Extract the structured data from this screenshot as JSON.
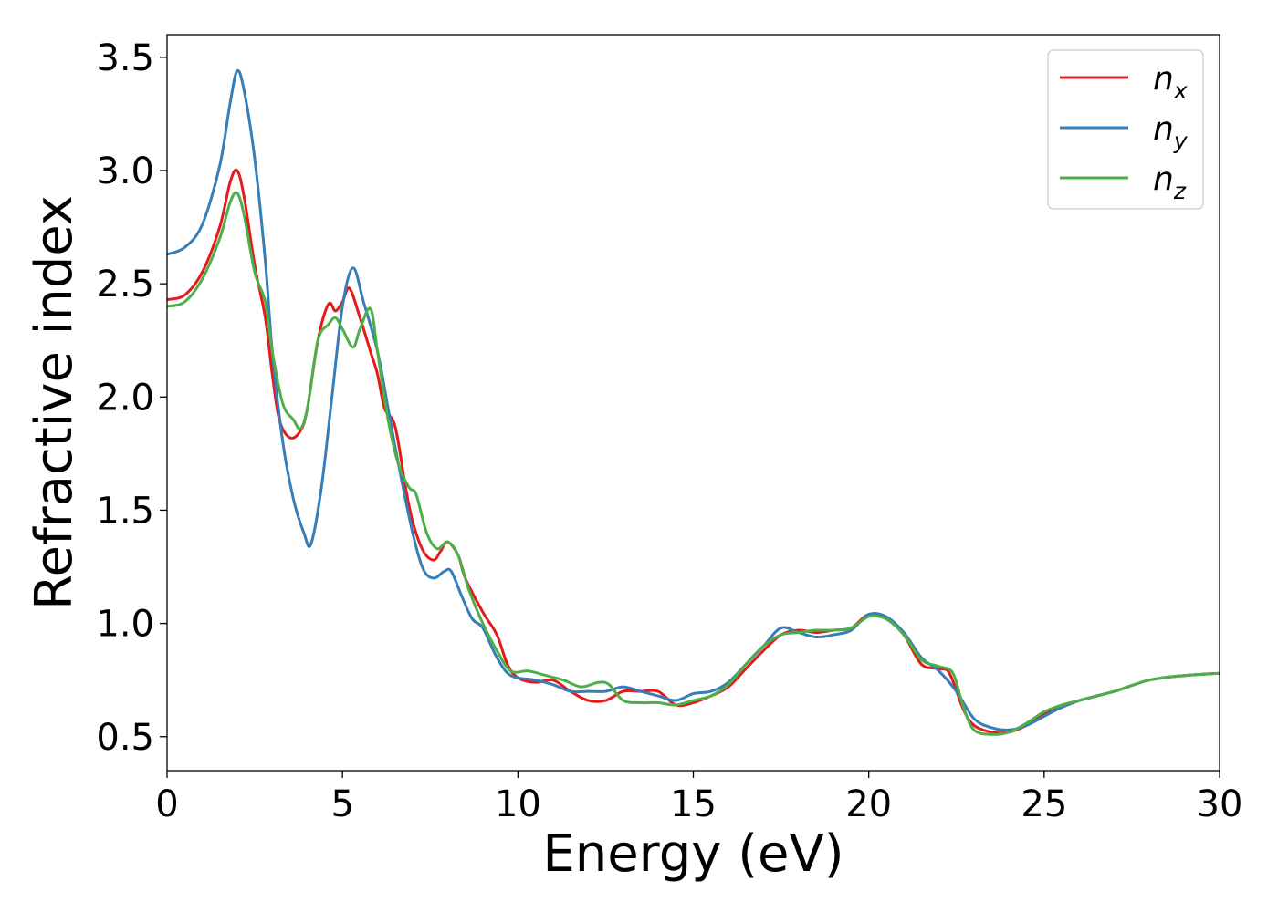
{
  "chart_data": {
    "type": "line",
    "title": "",
    "xlabel": "Energy (eV)",
    "ylabel": "Refractive index",
    "xlim": [
      0,
      30
    ],
    "ylim": [
      0.35,
      3.6
    ],
    "x_ticks": [
      0,
      5,
      10,
      15,
      20,
      25,
      30
    ],
    "x_tick_labels": [
      "0",
      "5",
      "10",
      "15",
      "20",
      "25",
      "30"
    ],
    "y_ticks": [
      0.5,
      1.0,
      1.5,
      2.0,
      2.5,
      3.0,
      3.5
    ],
    "y_tick_labels": [
      "0.5",
      "1.0",
      "1.5",
      "2.0",
      "2.5",
      "3.0",
      "3.5"
    ],
    "grid": false,
    "legend_position": "top-right",
    "series": [
      {
        "name": "n",
        "name_subscript": "x",
        "color": "#e41a1c",
        "points": [
          [
            0,
            2.43
          ],
          [
            0.5,
            2.45
          ],
          [
            1.0,
            2.55
          ],
          [
            1.5,
            2.75
          ],
          [
            1.8,
            2.95
          ],
          [
            2.0,
            3.0
          ],
          [
            2.2,
            2.88
          ],
          [
            2.5,
            2.58
          ],
          [
            2.8,
            2.35
          ],
          [
            3.0,
            2.1
          ],
          [
            3.2,
            1.9
          ],
          [
            3.5,
            1.82
          ],
          [
            3.8,
            1.85
          ],
          [
            4.0,
            1.95
          ],
          [
            4.3,
            2.25
          ],
          [
            4.6,
            2.41
          ],
          [
            4.8,
            2.38
          ],
          [
            5.0,
            2.42
          ],
          [
            5.2,
            2.48
          ],
          [
            5.5,
            2.35
          ],
          [
            5.8,
            2.2
          ],
          [
            6.0,
            2.1
          ],
          [
            6.2,
            1.95
          ],
          [
            6.5,
            1.87
          ],
          [
            6.8,
            1.6
          ],
          [
            7.0,
            1.45
          ],
          [
            7.3,
            1.32
          ],
          [
            7.6,
            1.28
          ],
          [
            7.8,
            1.32
          ],
          [
            8.0,
            1.36
          ],
          [
            8.3,
            1.3
          ],
          [
            8.5,
            1.2
          ],
          [
            9.0,
            1.05
          ],
          [
            9.4,
            0.95
          ],
          [
            9.7,
            0.82
          ],
          [
            10.0,
            0.76
          ],
          [
            10.5,
            0.74
          ],
          [
            11.0,
            0.75
          ],
          [
            11.5,
            0.7
          ],
          [
            12.0,
            0.66
          ],
          [
            12.5,
            0.66
          ],
          [
            13.0,
            0.7
          ],
          [
            13.5,
            0.7
          ],
          [
            14.0,
            0.7
          ],
          [
            14.5,
            0.64
          ],
          [
            15.0,
            0.65
          ],
          [
            15.5,
            0.68
          ],
          [
            16.0,
            0.72
          ],
          [
            16.5,
            0.8
          ],
          [
            17.0,
            0.88
          ],
          [
            17.5,
            0.95
          ],
          [
            18.0,
            0.97
          ],
          [
            18.5,
            0.96
          ],
          [
            19.0,
            0.97
          ],
          [
            19.5,
            0.98
          ],
          [
            20.0,
            1.04
          ],
          [
            20.5,
            1.02
          ],
          [
            21.0,
            0.95
          ],
          [
            21.5,
            0.82
          ],
          [
            22.0,
            0.8
          ],
          [
            22.3,
            0.78
          ],
          [
            22.7,
            0.62
          ],
          [
            23.0,
            0.55
          ],
          [
            23.5,
            0.52
          ],
          [
            24.0,
            0.52
          ],
          [
            24.5,
            0.55
          ],
          [
            25.0,
            0.6
          ],
          [
            25.5,
            0.63
          ],
          [
            26.0,
            0.66
          ],
          [
            27.0,
            0.7
          ],
          [
            28.0,
            0.75
          ],
          [
            29.0,
            0.77
          ],
          [
            30.0,
            0.78
          ]
        ]
      },
      {
        "name": "n",
        "name_subscript": "y",
        "color": "#377eb8",
        "points": [
          [
            0,
            2.63
          ],
          [
            0.5,
            2.66
          ],
          [
            1.0,
            2.76
          ],
          [
            1.5,
            3.02
          ],
          [
            1.8,
            3.3
          ],
          [
            2.0,
            3.44
          ],
          [
            2.2,
            3.35
          ],
          [
            2.5,
            3.05
          ],
          [
            2.8,
            2.6
          ],
          [
            3.0,
            2.2
          ],
          [
            3.3,
            1.8
          ],
          [
            3.6,
            1.55
          ],
          [
            3.9,
            1.4
          ],
          [
            4.1,
            1.35
          ],
          [
            4.4,
            1.6
          ],
          [
            4.7,
            2.0
          ],
          [
            5.0,
            2.4
          ],
          [
            5.3,
            2.57
          ],
          [
            5.6,
            2.42
          ],
          [
            6.0,
            2.2
          ],
          [
            6.3,
            1.95
          ],
          [
            6.6,
            1.7
          ],
          [
            7.0,
            1.4
          ],
          [
            7.3,
            1.24
          ],
          [
            7.6,
            1.2
          ],
          [
            7.9,
            1.23
          ],
          [
            8.1,
            1.23
          ],
          [
            8.4,
            1.12
          ],
          [
            8.7,
            1.02
          ],
          [
            9.0,
            0.98
          ],
          [
            9.4,
            0.85
          ],
          [
            9.8,
            0.77
          ],
          [
            10.5,
            0.75
          ],
          [
            11.0,
            0.73
          ],
          [
            11.5,
            0.7
          ],
          [
            12.0,
            0.7
          ],
          [
            12.5,
            0.7
          ],
          [
            13.0,
            0.72
          ],
          [
            13.5,
            0.7
          ],
          [
            14.0,
            0.68
          ],
          [
            14.5,
            0.66
          ],
          [
            15.0,
            0.69
          ],
          [
            15.5,
            0.7
          ],
          [
            16.0,
            0.74
          ],
          [
            16.5,
            0.82
          ],
          [
            17.0,
            0.9
          ],
          [
            17.5,
            0.98
          ],
          [
            18.0,
            0.96
          ],
          [
            18.5,
            0.94
          ],
          [
            19.0,
            0.95
          ],
          [
            19.5,
            0.97
          ],
          [
            20.0,
            1.04
          ],
          [
            20.5,
            1.03
          ],
          [
            21.0,
            0.96
          ],
          [
            21.5,
            0.85
          ],
          [
            22.0,
            0.79
          ],
          [
            22.5,
            0.7
          ],
          [
            23.0,
            0.58
          ],
          [
            23.5,
            0.54
          ],
          [
            24.0,
            0.53
          ],
          [
            24.5,
            0.55
          ],
          [
            25.0,
            0.59
          ],
          [
            25.5,
            0.63
          ],
          [
            26.0,
            0.66
          ],
          [
            27.0,
            0.7
          ],
          [
            28.0,
            0.75
          ],
          [
            29.0,
            0.77
          ],
          [
            30.0,
            0.78
          ]
        ]
      },
      {
        "name": "n",
        "name_subscript": "z",
        "color": "#4daf4a",
        "points": [
          [
            0,
            2.4
          ],
          [
            0.5,
            2.42
          ],
          [
            1.0,
            2.52
          ],
          [
            1.5,
            2.7
          ],
          [
            1.8,
            2.86
          ],
          [
            2.0,
            2.9
          ],
          [
            2.2,
            2.8
          ],
          [
            2.5,
            2.55
          ],
          [
            2.8,
            2.42
          ],
          [
            3.0,
            2.2
          ],
          [
            3.3,
            1.97
          ],
          [
            3.6,
            1.9
          ],
          [
            3.8,
            1.86
          ],
          [
            4.0,
            1.95
          ],
          [
            4.3,
            2.25
          ],
          [
            4.6,
            2.32
          ],
          [
            4.8,
            2.35
          ],
          [
            5.0,
            2.3
          ],
          [
            5.3,
            2.22
          ],
          [
            5.5,
            2.3
          ],
          [
            5.8,
            2.39
          ],
          [
            6.0,
            2.2
          ],
          [
            6.3,
            1.9
          ],
          [
            6.6,
            1.7
          ],
          [
            6.9,
            1.6
          ],
          [
            7.1,
            1.57
          ],
          [
            7.4,
            1.4
          ],
          [
            7.7,
            1.33
          ],
          [
            8.0,
            1.36
          ],
          [
            8.3,
            1.3
          ],
          [
            8.6,
            1.15
          ],
          [
            9.0,
            1.0
          ],
          [
            9.4,
            0.88
          ],
          [
            9.8,
            0.79
          ],
          [
            10.3,
            0.79
          ],
          [
            10.8,
            0.77
          ],
          [
            11.3,
            0.75
          ],
          [
            11.8,
            0.72
          ],
          [
            12.3,
            0.74
          ],
          [
            12.6,
            0.73
          ],
          [
            13.0,
            0.66
          ],
          [
            13.5,
            0.65
          ],
          [
            14.0,
            0.65
          ],
          [
            14.5,
            0.64
          ],
          [
            15.0,
            0.66
          ],
          [
            15.5,
            0.68
          ],
          [
            16.0,
            0.73
          ],
          [
            16.5,
            0.82
          ],
          [
            17.0,
            0.9
          ],
          [
            17.5,
            0.95
          ],
          [
            18.0,
            0.96
          ],
          [
            18.5,
            0.97
          ],
          [
            19.0,
            0.97
          ],
          [
            19.5,
            0.98
          ],
          [
            20.0,
            1.03
          ],
          [
            20.5,
            1.02
          ],
          [
            21.0,
            0.95
          ],
          [
            21.5,
            0.84
          ],
          [
            22.0,
            0.81
          ],
          [
            22.4,
            0.78
          ],
          [
            22.7,
            0.63
          ],
          [
            23.0,
            0.53
          ],
          [
            23.5,
            0.51
          ],
          [
            24.0,
            0.52
          ],
          [
            24.5,
            0.56
          ],
          [
            25.0,
            0.61
          ],
          [
            25.5,
            0.64
          ],
          [
            26.0,
            0.66
          ],
          [
            27.0,
            0.7
          ],
          [
            28.0,
            0.75
          ],
          [
            29.0,
            0.77
          ],
          [
            30.0,
            0.78
          ]
        ]
      }
    ]
  }
}
